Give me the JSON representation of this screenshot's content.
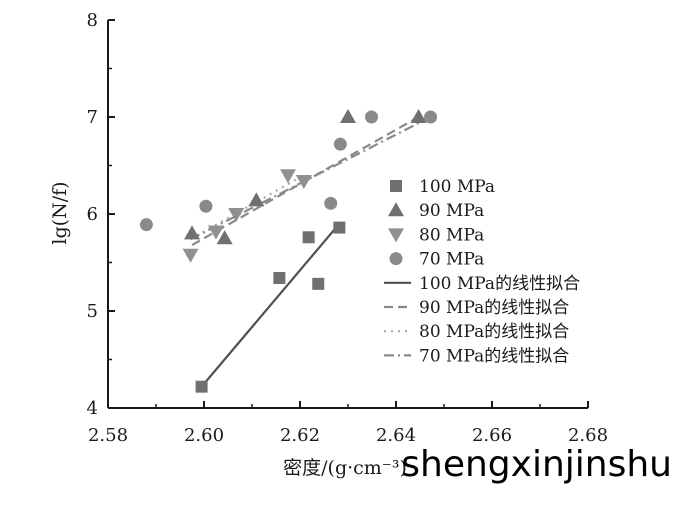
{
  "chart_data": {
    "type": "scatter",
    "xlabel": "密度/(g·cm⁻³)",
    "ylabel": "lg(N/f)",
    "xlim": [
      2.58,
      2.68
    ],
    "ylim": [
      4,
      8
    ],
    "x_ticks": [
      "2.58",
      "2.60",
      "2.62",
      "2.64",
      "2.66",
      "2.68"
    ],
    "y_ticks": [
      "4",
      "5",
      "6",
      "7",
      "8"
    ],
    "grid": false,
    "legend_position": "right",
    "series": [
      {
        "name": "100 MPa",
        "marker": "square",
        "color": "#707070",
        "points": [
          [
            2.5995,
            4.22
          ],
          [
            2.6157,
            5.34
          ],
          [
            2.6218,
            5.76
          ],
          [
            2.6238,
            5.28
          ],
          [
            2.6282,
            5.86
          ]
        ]
      },
      {
        "name": "90 MPa",
        "marker": "triangle-up",
        "color": "#707070",
        "points": [
          [
            2.5975,
            5.8
          ],
          [
            2.6043,
            5.75
          ],
          [
            2.6109,
            6.14
          ],
          [
            2.63,
            7.0
          ],
          [
            2.6447,
            7.0
          ]
        ]
      },
      {
        "name": "80 MPa",
        "marker": "triangle-down",
        "color": "#909090",
        "points": [
          [
            2.5972,
            5.58
          ],
          [
            2.6025,
            5.82
          ],
          [
            2.6067,
            6.0
          ],
          [
            2.6175,
            6.4
          ],
          [
            2.6208,
            6.34
          ]
        ]
      },
      {
        "name": "70 MPa",
        "marker": "circle",
        "color": "#8a8a8a",
        "points": [
          [
            2.588,
            5.89
          ],
          [
            2.6004,
            6.08
          ],
          [
            2.6264,
            6.11
          ],
          [
            2.6284,
            6.72
          ],
          [
            2.6349,
            7.0
          ],
          [
            2.6472,
            7.0
          ]
        ]
      }
    ],
    "fits": [
      {
        "name": "100 MPa的线性拟合",
        "style": "solid",
        "color": "#505050",
        "from": [
          2.5995,
          4.22
        ],
        "to": [
          2.6282,
          5.9
        ]
      },
      {
        "name": "90 MPa的线性拟合",
        "style": "dash",
        "color": "#8a8a8a",
        "from": [
          2.5975,
          5.68
        ],
        "to": [
          2.6447,
          7.0
        ]
      },
      {
        "name": "80 MPa的线性拟合",
        "style": "dot",
        "color": "#a8a8a8",
        "from": [
          2.5972,
          5.74
        ],
        "to": [
          2.6208,
          6.4
        ]
      },
      {
        "name": "70 MPa的线性拟合",
        "style": "dashdot",
        "color": "#8a8a8a",
        "from": [
          2.5972,
          5.74
        ],
        "to": [
          2.6472,
          7.0
        ]
      }
    ]
  },
  "watermark": "shengxinjinshu"
}
